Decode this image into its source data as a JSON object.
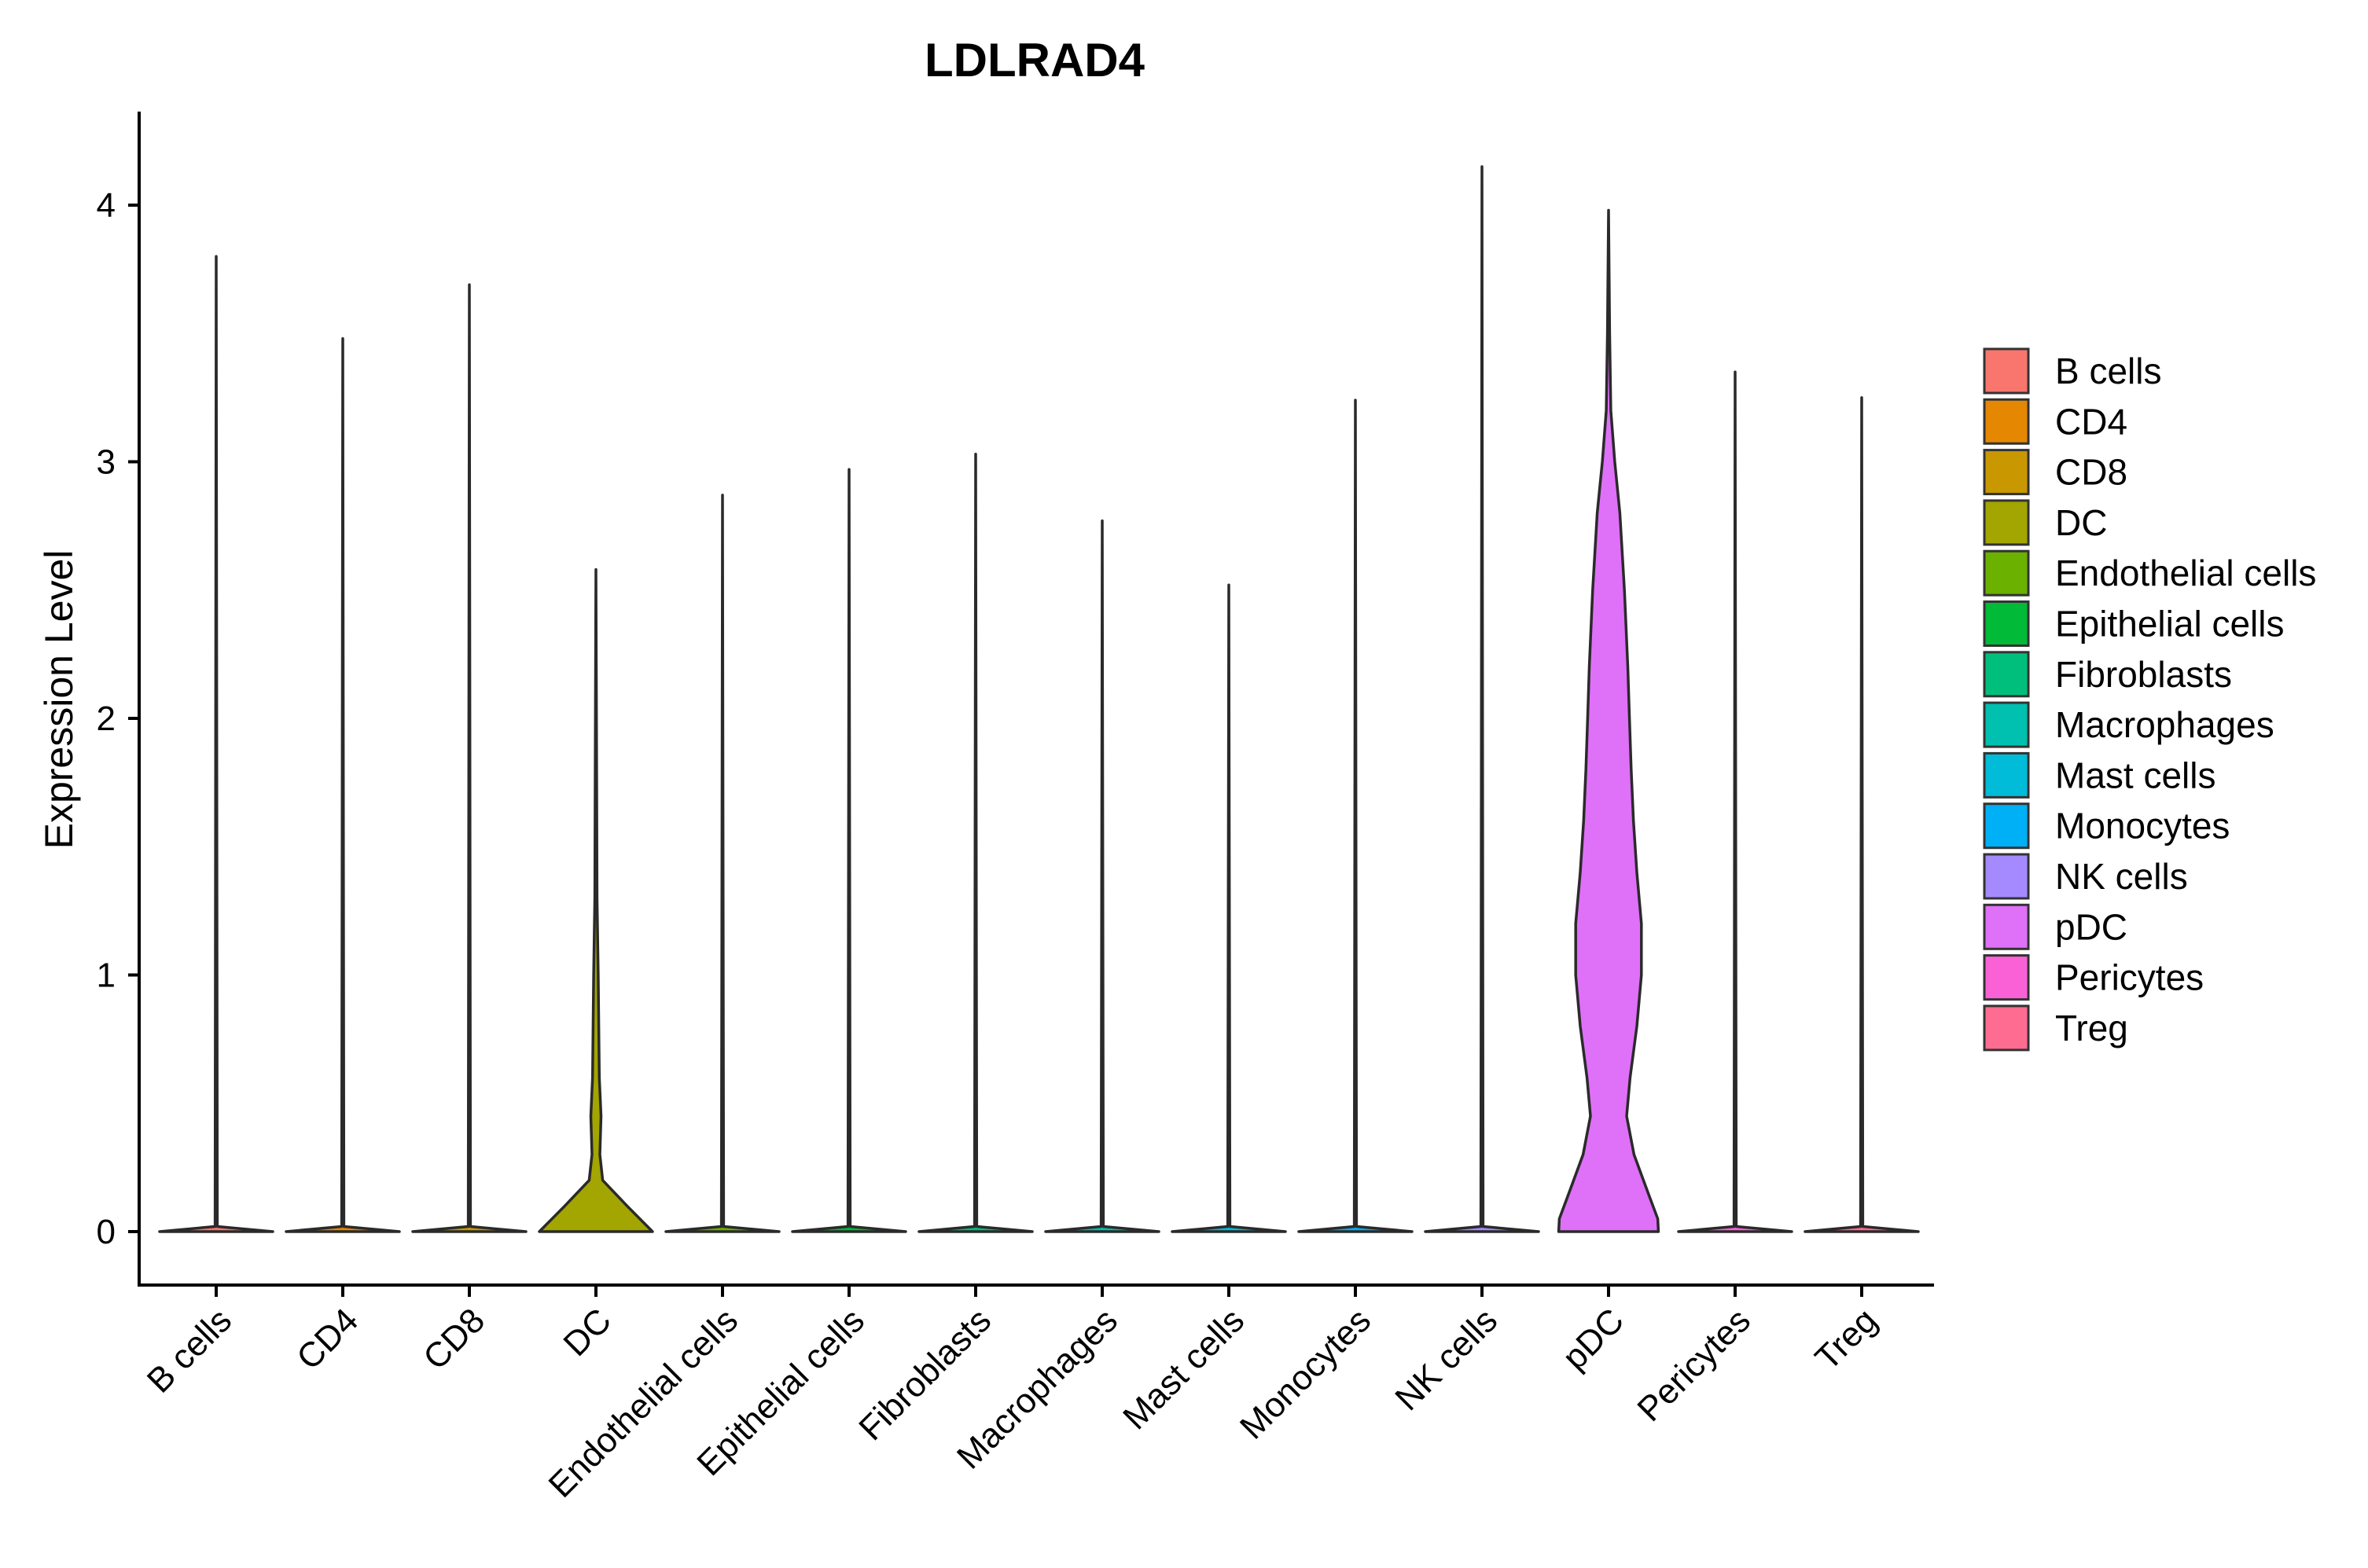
{
  "chart_data": {
    "type": "violin",
    "title": "LDLRAD4",
    "xlabel": "",
    "ylabel": "Expression Level",
    "ylim": [
      -0.2,
      4.37
    ],
    "yticks": [
      0,
      1,
      2,
      3,
      4
    ],
    "grid": false,
    "legend_position": "right",
    "categories": [
      "B cells",
      "CD4",
      "CD8",
      "DC",
      "Endothelial cells",
      "Epithelial cells",
      "Fibroblasts",
      "Macrophages",
      "Mast cells",
      "Monocytes",
      "NK cells",
      "pDC",
      "Pericytes",
      "Treg"
    ],
    "colors": [
      "#F8766D",
      "#E58700",
      "#C99800",
      "#A3A500",
      "#6BB100",
      "#00BA38",
      "#00BF7D",
      "#00C0AF",
      "#00BCD8",
      "#00B0F6",
      "#A58AFF",
      "#DF70F8",
      "#FB61D7",
      "#FF6C91"
    ],
    "max_values": [
      3.8,
      3.48,
      3.69,
      2.58,
      2.87,
      2.97,
      3.03,
      2.77,
      2.52,
      3.24,
      4.15,
      3.98,
      3.35,
      3.25
    ],
    "density_profiles": [
      [
        [
          0,
          1
        ],
        [
          0.02,
          0.02
        ],
        [
          3.8,
          0
        ]
      ],
      [
        [
          0,
          1
        ],
        [
          0.02,
          0.02
        ],
        [
          3.48,
          0
        ]
      ],
      [
        [
          0,
          1
        ],
        [
          0.02,
          0.02
        ],
        [
          3.69,
          0
        ]
      ],
      [
        [
          0,
          1
        ],
        [
          0.1,
          0.55
        ],
        [
          0.2,
          0.12
        ],
        [
          0.3,
          0.07
        ],
        [
          0.45,
          0.09
        ],
        [
          0.6,
          0.06
        ],
        [
          0.8,
          0.05
        ],
        [
          1.0,
          0.04
        ],
        [
          1.3,
          0.02
        ],
        [
          1.8,
          0.012
        ],
        [
          2.58,
          0
        ]
      ],
      [
        [
          0,
          1
        ],
        [
          0.02,
          0.02
        ],
        [
          2.87,
          0
        ]
      ],
      [
        [
          0,
          1
        ],
        [
          0.02,
          0.02
        ],
        [
          2.97,
          0
        ]
      ],
      [
        [
          0,
          1
        ],
        [
          0.02,
          0.02
        ],
        [
          3.03,
          0
        ]
      ],
      [
        [
          0,
          1
        ],
        [
          0.02,
          0.02
        ],
        [
          2.77,
          0
        ]
      ],
      [
        [
          0,
          1
        ],
        [
          0.02,
          0.02
        ],
        [
          2.52,
          0
        ]
      ],
      [
        [
          0,
          1
        ],
        [
          0.02,
          0.02
        ],
        [
          3.24,
          0
        ]
      ],
      [
        [
          0,
          1
        ],
        [
          0.02,
          0.02
        ],
        [
          4.15,
          0
        ]
      ],
      [
        [
          0,
          0.88
        ],
        [
          0.05,
          0.87
        ],
        [
          0.15,
          0.7
        ],
        [
          0.3,
          0.45
        ],
        [
          0.45,
          0.32
        ],
        [
          0.6,
          0.38
        ],
        [
          0.8,
          0.5
        ],
        [
          1.0,
          0.58
        ],
        [
          1.2,
          0.58
        ],
        [
          1.4,
          0.5
        ],
        [
          1.6,
          0.44
        ],
        [
          1.8,
          0.4
        ],
        [
          2.0,
          0.37
        ],
        [
          2.2,
          0.34
        ],
        [
          2.5,
          0.28
        ],
        [
          2.8,
          0.2
        ],
        [
          3.0,
          0.11
        ],
        [
          3.2,
          0.04
        ],
        [
          3.5,
          0.02
        ],
        [
          3.98,
          0
        ]
      ],
      [
        [
          0,
          1
        ],
        [
          0.02,
          0.02
        ],
        [
          3.35,
          0
        ]
      ],
      [
        [
          0,
          1
        ],
        [
          0.02,
          0.02
        ],
        [
          3.25,
          0
        ]
      ]
    ]
  }
}
